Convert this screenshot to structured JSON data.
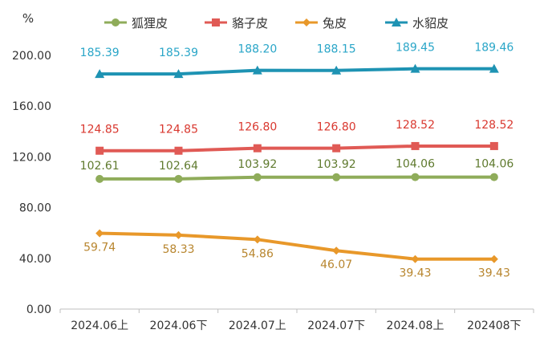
{
  "chart_data": {
    "type": "line",
    "ylabel": "%",
    "ylim": [
      0,
      200
    ],
    "yticks": [
      "0.00",
      "40.00",
      "80.00",
      "120.00",
      "160.00",
      "200.00"
    ],
    "categories": [
      "2024.06上",
      "2024.06下",
      "2024.07上",
      "2024.07下",
      "2024.08上",
      "202408下"
    ],
    "grid": false,
    "legend": "top",
    "series": [
      {
        "name": "狐狸皮",
        "values": [
          102.61,
          102.64,
          103.92,
          103.92,
          104.06,
          104.06
        ],
        "labels": [
          "102.61",
          "102.64",
          "103.92",
          "103.92",
          "104.06",
          "104.06"
        ],
        "color": "#8fac5a",
        "label_color": "#5f7a2e",
        "marker": "circle"
      },
      {
        "name": "貉子皮",
        "values": [
          124.85,
          124.85,
          126.8,
          126.8,
          128.52,
          128.52
        ],
        "labels": [
          "124.85",
          "124.85",
          "126.80",
          "126.80",
          "128.52",
          "128.52"
        ],
        "color": "#e05a55",
        "label_color": "#d9382f",
        "marker": "square"
      },
      {
        "name": "兔皮",
        "values": [
          59.74,
          58.33,
          54.86,
          46.07,
          39.43,
          39.43
        ],
        "labels": [
          "59.74",
          "58.33",
          "54.86",
          "46.07",
          "39.43",
          "39.43"
        ],
        "color": "#e8982a",
        "label_color": "#b8862f",
        "marker": "diamond"
      },
      {
        "name": "水貂皮",
        "values": [
          185.39,
          185.39,
          188.2,
          188.15,
          189.45,
          189.46
        ],
        "labels": [
          "185.39",
          "185.39",
          "188.20",
          "188.15",
          "189.45",
          "189.46"
        ],
        "color": "#1e93b3",
        "label_color": "#2aa6c8",
        "marker": "triangle"
      }
    ]
  }
}
